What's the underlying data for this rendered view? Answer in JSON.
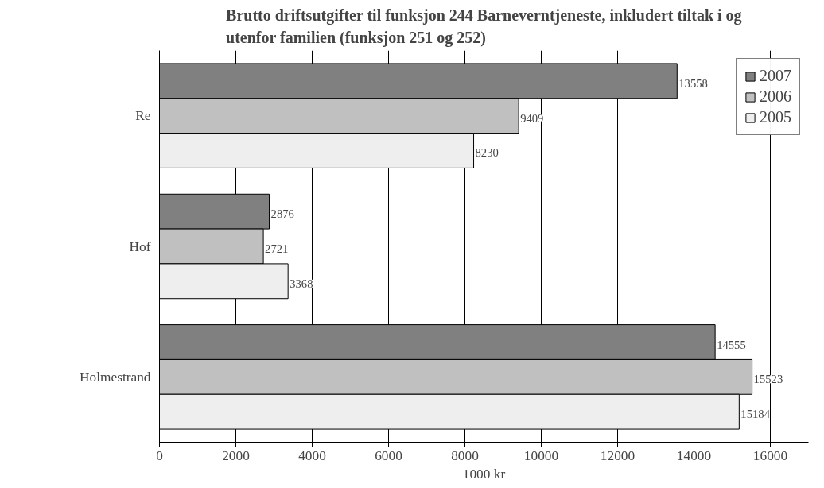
{
  "chart_data": {
    "type": "bar",
    "orientation": "horizontal",
    "title": "Brutto driftsutgifter til funksjon 244 Barneverntjeneste, inkludert tiltak i og utenfor familien (funksjon 251 og 252)",
    "xlabel": "1000 kr",
    "categories": [
      "Re",
      "Hof",
      "Holmestrand"
    ],
    "series": [
      {
        "name": "2007",
        "color": "#808080",
        "values": [
          13558,
          2876,
          14555
        ]
      },
      {
        "name": "2006",
        "color": "#c0c0c0",
        "values": [
          9409,
          2721,
          15523
        ]
      },
      {
        "name": "2005",
        "color": "#eeeeee",
        "values": [
          8230,
          3368,
          15184
        ]
      }
    ],
    "xlim": [
      0,
      17000
    ],
    "xticks": [
      0,
      2000,
      4000,
      6000,
      8000,
      10000,
      12000,
      14000,
      16000
    ],
    "grid": "x",
    "legend": "top right",
    "data_labels": true
  }
}
